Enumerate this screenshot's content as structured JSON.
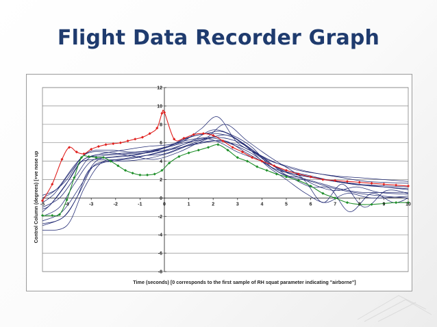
{
  "slide": {
    "title": "Flight Data Recorder Graph"
  },
  "chart_data": {
    "type": "line",
    "title": "",
    "xlabel": "Time (seconds) [0 corresponds to the first sample of RH squat parameter indicating \"airborne\"]",
    "ylabel": "Control Column (degrees) [+ve nose up",
    "xlim": [
      -5,
      10
    ],
    "ylim": [
      -8,
      12
    ],
    "x_ticks": [
      -5,
      -4,
      -3,
      -2,
      -1,
      0,
      1,
      2,
      3,
      4,
      5,
      6,
      7,
      8,
      9,
      10
    ],
    "y_ticks": [
      12,
      10,
      8,
      6,
      4,
      2,
      0,
      -2,
      -4,
      -6,
      -8
    ],
    "grid": true,
    "legend": "none",
    "colors": {
      "reference": "#1c2570",
      "highlight_red": "#e0201e",
      "highlight_green": "#1f8f2a"
    },
    "series": [
      {
        "color": "#e0201e",
        "marker": "diamond",
        "x": [
          -5,
          -4.6,
          -4.2,
          -3.9,
          -3.6,
          -3.3,
          -3.0,
          -2.7,
          -2.4,
          -2.1,
          -1.8,
          -1.5,
          -1.2,
          -0.9,
          -0.6,
          -0.3,
          -0.1,
          0,
          0.4,
          0.8,
          1.2,
          1.6,
          2.0,
          2.4,
          2.8,
          3.2,
          3.6,
          4.0,
          4.5,
          5,
          5.5,
          6,
          6.5,
          7,
          7.5,
          8,
          8.5,
          9,
          9.5,
          10
        ],
        "y": [
          -0.3,
          1.5,
          4.2,
          5.5,
          5.0,
          4.8,
          5.3,
          5.6,
          5.8,
          5.9,
          6.0,
          6.2,
          6.4,
          6.6,
          7.0,
          7.6,
          9.2,
          9.3,
          6.4,
          6.5,
          6.9,
          7.0,
          6.8,
          6.2,
          5.5,
          5.0,
          4.4,
          4.0,
          3.5,
          3.0,
          2.6,
          2.3,
          2.0,
          1.9,
          1.8,
          1.7,
          1.6,
          1.5,
          1.4,
          1.3
        ]
      },
      {
        "color": "#1f8f2a",
        "marker": "diamond",
        "x": [
          -5,
          -4.6,
          -4.3,
          -4.0,
          -3.7,
          -3.4,
          -3.1,
          -2.8,
          -2.5,
          -2.2,
          -1.9,
          -1.6,
          -1.3,
          -1.0,
          -0.7,
          -0.4,
          -0.1,
          0.2,
          0.6,
          1.0,
          1.4,
          1.8,
          2.2,
          2.6,
          3.0,
          3.4,
          3.8,
          4.2,
          4.6,
          5,
          5.5,
          6,
          6.5,
          7,
          7.5,
          8,
          8.5,
          9,
          9.5,
          10
        ],
        "y": [
          -1.9,
          -1.9,
          -1.8,
          -0.2,
          2.2,
          4.4,
          4.5,
          4.4,
          4.4,
          4.0,
          3.5,
          3.0,
          2.7,
          2.5,
          2.5,
          2.6,
          3.0,
          3.8,
          4.5,
          4.9,
          5.2,
          5.5,
          5.8,
          5.2,
          4.4,
          4.0,
          3.4,
          3.0,
          2.6,
          2.3,
          1.9,
          1.3,
          0.5,
          0.0,
          -0.5,
          -0.7,
          -0.7,
          -0.6,
          -0.5,
          -0.5
        ]
      },
      {
        "color": "#1c2570",
        "x": [
          -5,
          -4.3,
          -3.6,
          -3.0,
          -2.0,
          -1.0,
          0,
          1.0,
          1.6,
          2.3,
          3.0,
          4.0,
          5.0,
          6.0,
          7.0,
          8.0,
          9.0,
          10
        ],
        "y": [
          -1.0,
          0.0,
          2.5,
          4.5,
          4.8,
          5.0,
          5.2,
          6.0,
          6.5,
          6.0,
          5.0,
          4.0,
          3.0,
          2.4,
          1.8,
          1.4,
          1.2,
          1.0
        ]
      },
      {
        "color": "#1c2570",
        "x": [
          -5,
          -4.2,
          -3.4,
          -2.8,
          -2.0,
          -1.0,
          0,
          0.8,
          1.5,
          2.2,
          3.0,
          4.0,
          5.0,
          6.0,
          7.0,
          8.0,
          9.0,
          10
        ],
        "y": [
          -2.5,
          -1.5,
          1.5,
          4.0,
          4.5,
          4.8,
          5.5,
          6.2,
          7.5,
          8.8,
          6.0,
          4.5,
          2.5,
          1.8,
          1.0,
          0.5,
          0.2,
          0.0
        ]
      },
      {
        "color": "#1c2570",
        "x": [
          -5,
          -4.4,
          -3.7,
          -3.1,
          -2.2,
          -1.2,
          0,
          0.9,
          1.7,
          2.4,
          3.2,
          4.2,
          5.0,
          6.0,
          7.0,
          8.0,
          9.0,
          10
        ],
        "y": [
          0.0,
          1.0,
          3.5,
          5.0,
          5.2,
          5.0,
          5.5,
          6.5,
          7.0,
          7.2,
          6.0,
          4.2,
          3.5,
          2.8,
          2.4,
          2.2,
          2.0,
          1.8
        ]
      },
      {
        "color": "#1c2570",
        "x": [
          -5,
          -4.0,
          -3.3,
          -2.6,
          -1.8,
          -0.8,
          0,
          1.0,
          1.8,
          2.6,
          3.4,
          4.2,
          5.0,
          5.8,
          6.6,
          7.5,
          8.5,
          10
        ],
        "y": [
          -3.5,
          -3.0,
          1.0,
          3.8,
          4.2,
          4.6,
          4.8,
          5.8,
          6.5,
          6.8,
          5.5,
          3.5,
          2.0,
          0.5,
          -0.5,
          0.5,
          0.0,
          0.2
        ]
      },
      {
        "color": "#1c2570",
        "x": [
          -5,
          -4.5,
          -3.8,
          -3.2,
          -2.4,
          -1.4,
          -0.4,
          0.6,
          1.4,
          2.0,
          2.8,
          3.6,
          4.5,
          5.5,
          6.5,
          7.5,
          8.5,
          10
        ],
        "y": [
          -0.5,
          0.5,
          3.0,
          4.8,
          5.0,
          4.6,
          4.2,
          5.0,
          6.0,
          6.5,
          5.8,
          4.8,
          3.2,
          2.5,
          2.0,
          1.6,
          1.4,
          1.2
        ]
      },
      {
        "color": "#1c2570",
        "x": [
          -5,
          -4.1,
          -3.5,
          -2.9,
          -2.1,
          -1.1,
          -0.2,
          0.7,
          1.6,
          2.5,
          3.3,
          4.1,
          4.9,
          5.7,
          6.5,
          7.3,
          8.2,
          9.1,
          10
        ],
        "y": [
          -3.0,
          -2.0,
          0.5,
          3.5,
          4.0,
          4.4,
          5.0,
          5.5,
          6.0,
          6.2,
          5.0,
          3.8,
          2.5,
          2.0,
          -0.5,
          1.5,
          -1.0,
          0.8,
          0.5
        ]
      },
      {
        "color": "#1c2570",
        "x": [
          -5,
          -4.6,
          -3.9,
          -3.3,
          -2.5,
          -1.5,
          -0.5,
          0.5,
          1.3,
          2.1,
          2.9,
          3.7,
          4.6,
          5.5,
          6.4,
          7.3,
          8.3,
          10
        ],
        "y": [
          -1.5,
          -0.5,
          2.0,
          4.2,
          4.6,
          4.8,
          5.0,
          6.0,
          6.8,
          7.0,
          6.5,
          5.0,
          3.8,
          3.0,
          2.6,
          2.2,
          1.8,
          1.6
        ]
      },
      {
        "color": "#1c2570",
        "x": [
          -5,
          -4.3,
          -3.7,
          -3.0,
          -2.2,
          -1.3,
          -0.3,
          0.8,
          1.7,
          2.5,
          3.4,
          4.3,
          5.2,
          6.1,
          7.0,
          7.9,
          8.8,
          10
        ],
        "y": [
          -2.0,
          -1.0,
          1.5,
          4.0,
          4.4,
          4.6,
          5.2,
          6.0,
          6.5,
          8.0,
          6.2,
          4.5,
          3.0,
          1.5,
          0.8,
          1.2,
          0.6,
          0.4
        ]
      },
      {
        "color": "#1c2570",
        "x": [
          -5,
          -4.5,
          -4.0,
          -3.5,
          -2.8,
          -1.9,
          -0.9,
          0.1,
          1.1,
          1.9,
          2.7,
          3.5,
          4.4,
          5.3,
          6.2,
          7.1,
          8.0,
          9.0,
          10
        ],
        "y": [
          0.3,
          0.8,
          2.0,
          3.8,
          4.2,
          4.0,
          4.2,
          4.8,
          5.8,
          6.2,
          6.0,
          5.2,
          3.6,
          2.6,
          2.2,
          1.8,
          1.5,
          1.2,
          0.9
        ]
      },
      {
        "color": "#1c2570",
        "x": [
          -5,
          -4.2,
          -3.6,
          -3.1,
          -2.3,
          -1.6,
          -0.6,
          0.3,
          1.2,
          2.0,
          2.8,
          3.6,
          4.4,
          5.2,
          6.0,
          6.8,
          7.6,
          8.5,
          9.4,
          10
        ],
        "y": [
          -2.8,
          -2.2,
          0.0,
          3.0,
          4.0,
          4.3,
          4.7,
          5.3,
          6.3,
          7.4,
          6.8,
          5.5,
          3.3,
          2.2,
          1.2,
          1.0,
          -1.5,
          0.5,
          -0.5,
          0.0
        ]
      },
      {
        "color": "#1c2570",
        "x": [
          -5,
          -4.7,
          -4.1,
          -3.4,
          -2.6,
          -1.7,
          -0.7,
          0.2,
          1.2,
          2.2,
          3.1,
          4.0,
          4.8,
          5.6,
          6.4,
          7.2,
          8.1,
          9.0,
          10
        ],
        "y": [
          -1.2,
          -0.8,
          1.2,
          4.0,
          4.8,
          5.2,
          5.6,
          5.8,
          6.4,
          6.6,
          6.0,
          4.4,
          3.0,
          2.2,
          1.6,
          1.0,
          0.6,
          0.6,
          0.6
        ]
      }
    ]
  }
}
